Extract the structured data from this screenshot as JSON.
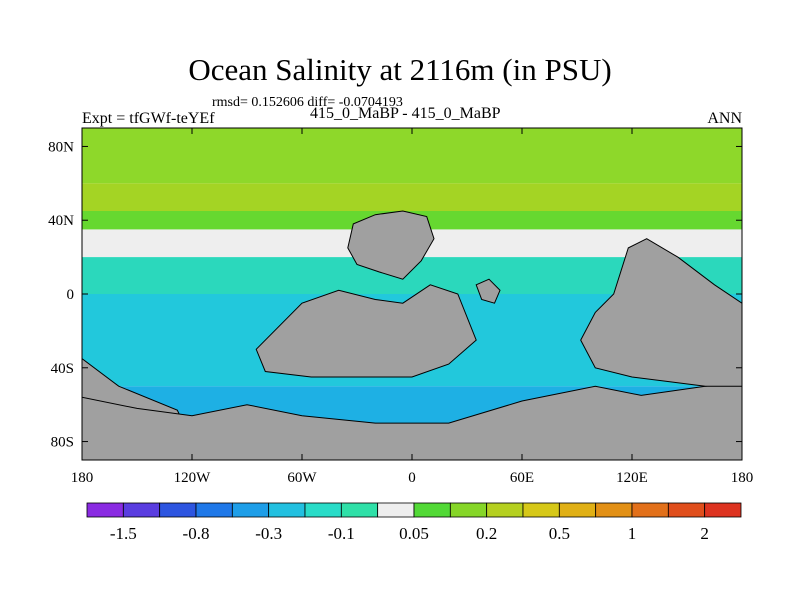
{
  "chart_data": {
    "type": "heatmap",
    "title": "Ocean Salinity at 2116m (in PSU)",
    "stats": "rmsd= 0.152606 diff= -0.0704193",
    "subtitle": "415_0_MaBP - 415_0_MaBP",
    "left_label": "Expt = tfGWf-teYEf",
    "right_label": "ANN",
    "xlim": [
      -180,
      180
    ],
    "ylim": [
      -90,
      90
    ],
    "x_ticks": [
      {
        "value": -180,
        "label": "180"
      },
      {
        "value": -120,
        "label": "120W"
      },
      {
        "value": -60,
        "label": "60W"
      },
      {
        "value": 0,
        "label": "0"
      },
      {
        "value": 60,
        "label": "60E"
      },
      {
        "value": 120,
        "label": "120E"
      },
      {
        "value": 180,
        "label": "180"
      }
    ],
    "y_ticks": [
      {
        "value": 80,
        "label": "80N"
      },
      {
        "value": 40,
        "label": "40N"
      },
      {
        "value": 0,
        "label": "0"
      },
      {
        "value": -40,
        "label": "40S"
      },
      {
        "value": -80,
        "label": "80S"
      }
    ],
    "colorbar": {
      "colors": [
        "#8a2be2",
        "#5a3de0",
        "#2d55e0",
        "#1f78e8",
        "#1e9ee8",
        "#22c0e0",
        "#29dcc8",
        "#2fe0a8",
        "#eeeeee",
        "#52d936",
        "#86d628",
        "#b5d020",
        "#d6c818",
        "#e0b016",
        "#e29016",
        "#e2701a",
        "#e04e1c",
        "#dd3320"
      ],
      "labels": [
        {
          "after_index": 0,
          "label": "-1.5"
        },
        {
          "after_index": 2,
          "label": "-0.8"
        },
        {
          "after_index": 4,
          "label": "-0.3"
        },
        {
          "after_index": 6,
          "label": "-0.1"
        },
        {
          "after_index": 8,
          "label": "0.05"
        },
        {
          "after_index": 10,
          "label": "0.2"
        },
        {
          "after_index": 12,
          "label": "0.5"
        },
        {
          "after_index": 14,
          "label": "1"
        },
        {
          "after_index": 16,
          "label": "2"
        }
      ]
    },
    "land_color": "#a0a0a0",
    "field_bands": [
      {
        "lat_range": [
          60,
          90
        ],
        "color": "#8ed82a"
      },
      {
        "lat_range": [
          45,
          60
        ],
        "color": "#a4d424"
      },
      {
        "lat_range": [
          35,
          45
        ],
        "color": "#66d830"
      },
      {
        "lat_range": [
          20,
          35
        ],
        "color": "#eeeeee"
      },
      {
        "lat_range": [
          0,
          20
        ],
        "color": "#2bd8bc"
      },
      {
        "lat_range": [
          -50,
          0
        ],
        "color": "#22c8dc"
      },
      {
        "lat_range": [
          -90,
          -50
        ],
        "color": "#1eb0e4"
      }
    ],
    "land_masses": [
      {
        "name": "americas",
        "outline": [
          [
            -115,
            -90
          ],
          [
            -128,
            -63
          ],
          [
            -160,
            -50
          ],
          [
            -180,
            -35
          ],
          [
            -180,
            -90
          ]
        ]
      },
      {
        "name": "south-land",
        "outline": [
          [
            -180,
            -90
          ],
          [
            -180,
            -56
          ],
          [
            -150,
            -62
          ],
          [
            -120,
            -66
          ],
          [
            -90,
            -60
          ],
          [
            -60,
            -66
          ],
          [
            -20,
            -70
          ],
          [
            20,
            -70
          ],
          [
            60,
            -58
          ],
          [
            100,
            -50
          ],
          [
            125,
            -55
          ],
          [
            160,
            -50
          ],
          [
            180,
            -48
          ],
          [
            180,
            -90
          ]
        ]
      },
      {
        "name": "africa-south-america",
        "outline": [
          [
            -85,
            -30
          ],
          [
            -60,
            -5
          ],
          [
            -40,
            2
          ],
          [
            -20,
            -3
          ],
          [
            -5,
            -5
          ],
          [
            10,
            5
          ],
          [
            25,
            0
          ],
          [
            35,
            -25
          ],
          [
            20,
            -38
          ],
          [
            0,
            -45
          ],
          [
            -25,
            -45
          ],
          [
            -55,
            -45
          ],
          [
            -80,
            -42
          ]
        ]
      },
      {
        "name": "europe-asia-block",
        "outline": [
          [
            -35,
            25
          ],
          [
            -32,
            38
          ],
          [
            -20,
            43
          ],
          [
            -5,
            45
          ],
          [
            8,
            42
          ],
          [
            12,
            30
          ],
          [
            5,
            18
          ],
          [
            -5,
            8
          ],
          [
            -18,
            12
          ],
          [
            -30,
            16
          ]
        ]
      },
      {
        "name": "asia-australia",
        "outline": [
          [
            110,
            0
          ],
          [
            118,
            25
          ],
          [
            128,
            30
          ],
          [
            145,
            20
          ],
          [
            165,
            5
          ],
          [
            180,
            -5
          ],
          [
            180,
            -50
          ],
          [
            160,
            -50
          ],
          [
            120,
            -45
          ],
          [
            100,
            -40
          ],
          [
            92,
            -25
          ],
          [
            100,
            -10
          ]
        ]
      },
      {
        "name": "island-1",
        "outline": [
          [
            35,
            5
          ],
          [
            42,
            8
          ],
          [
            48,
            2
          ],
          [
            45,
            -5
          ],
          [
            38,
            -3
          ]
        ]
      }
    ]
  }
}
